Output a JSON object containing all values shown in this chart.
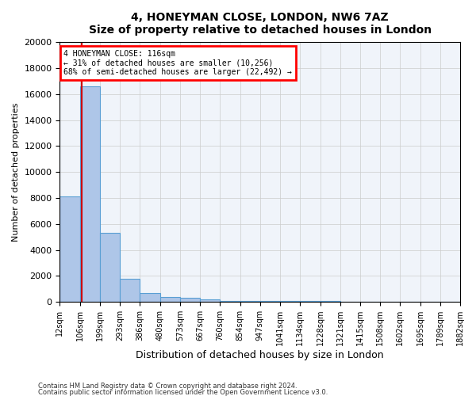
{
  "title": "4, HONEYMAN CLOSE, LONDON, NW6 7AZ",
  "subtitle": "Size of property relative to detached houses in London",
  "xlabel": "Distribution of detached houses by size in London",
  "ylabel": "Number of detached properties",
  "bar_color": "#aec6e8",
  "bar_edge_color": "#5a9fd4",
  "grid_color": "#cccccc",
  "bin_edges": [
    12,
    106,
    199,
    293,
    386,
    480,
    573,
    667,
    760,
    854,
    947,
    1041,
    1134,
    1228,
    1321,
    1415,
    1508,
    1602,
    1695,
    1789,
    1882
  ],
  "bar_heights": [
    8100,
    16600,
    5300,
    1800,
    700,
    400,
    300,
    200,
    100,
    80,
    70,
    55,
    50,
    45,
    40,
    35,
    30,
    28,
    25,
    22
  ],
  "tick_labels": [
    "12sqm",
    "106sqm",
    "199sqm",
    "293sqm",
    "386sqm",
    "480sqm",
    "573sqm",
    "667sqm",
    "760sqm",
    "854sqm",
    "947sqm",
    "1041sqm",
    "1134sqm",
    "1228sqm",
    "1321sqm",
    "1415sqm",
    "1508sqm",
    "1602sqm",
    "1695sqm",
    "1789sqm",
    "1882sqm"
  ],
  "ylim": [
    0,
    20000
  ],
  "yticks": [
    0,
    2000,
    4000,
    6000,
    8000,
    10000,
    12000,
    14000,
    16000,
    18000,
    20000
  ],
  "property_size": 116,
  "annotation_title": "4 HONEYMAN CLOSE: 116sqm",
  "annotation_line1": "← 31% of detached houses are smaller (10,256)",
  "annotation_line2": "68% of semi-detached houses are larger (22,492) →",
  "annotation_box_color": "#ff0000",
  "vline_color": "#cc0000",
  "footnote1": "Contains HM Land Registry data © Crown copyright and database right 2024.",
  "footnote2": "Contains public sector information licensed under the Open Government Licence v3.0.",
  "background_color": "#f0f4fa"
}
